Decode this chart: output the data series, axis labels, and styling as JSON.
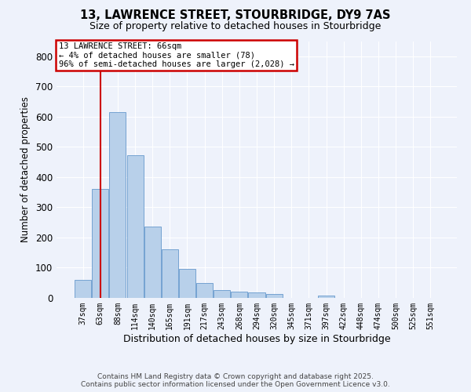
{
  "title_line1": "13, LAWRENCE STREET, STOURBRIDGE, DY9 7AS",
  "title_line2": "Size of property relative to detached houses in Stourbridge",
  "xlabel": "Distribution of detached houses by size in Stourbridge",
  "ylabel": "Number of detached properties",
  "categories": [
    "37sqm",
    "63sqm",
    "88sqm",
    "114sqm",
    "140sqm",
    "165sqm",
    "191sqm",
    "217sqm",
    "243sqm",
    "268sqm",
    "294sqm",
    "320sqm",
    "345sqm",
    "371sqm",
    "397sqm",
    "422sqm",
    "448sqm",
    "474sqm",
    "500sqm",
    "525sqm",
    "551sqm"
  ],
  "values": [
    60,
    362,
    615,
    472,
    236,
    162,
    97,
    50,
    25,
    20,
    18,
    13,
    0,
    0,
    7,
    0,
    0,
    0,
    0,
    0,
    0
  ],
  "bar_color": "#b8d0ea",
  "bar_edge_color": "#6699cc",
  "vline_x": 1.0,
  "vline_color": "#cc0000",
  "annotation_text": "13 LAWRENCE STREET: 66sqm\n← 4% of detached houses are smaller (78)\n96% of semi-detached houses are larger (2,028) →",
  "annotation_box_color": "#cc0000",
  "ylim": [
    0,
    850
  ],
  "yticks": [
    0,
    100,
    200,
    300,
    400,
    500,
    600,
    700,
    800
  ],
  "background_color": "#eef2fb",
  "grid_color": "#ffffff",
  "footer_line1": "Contains HM Land Registry data © Crown copyright and database right 2025.",
  "footer_line2": "Contains public sector information licensed under the Open Government Licence v3.0."
}
